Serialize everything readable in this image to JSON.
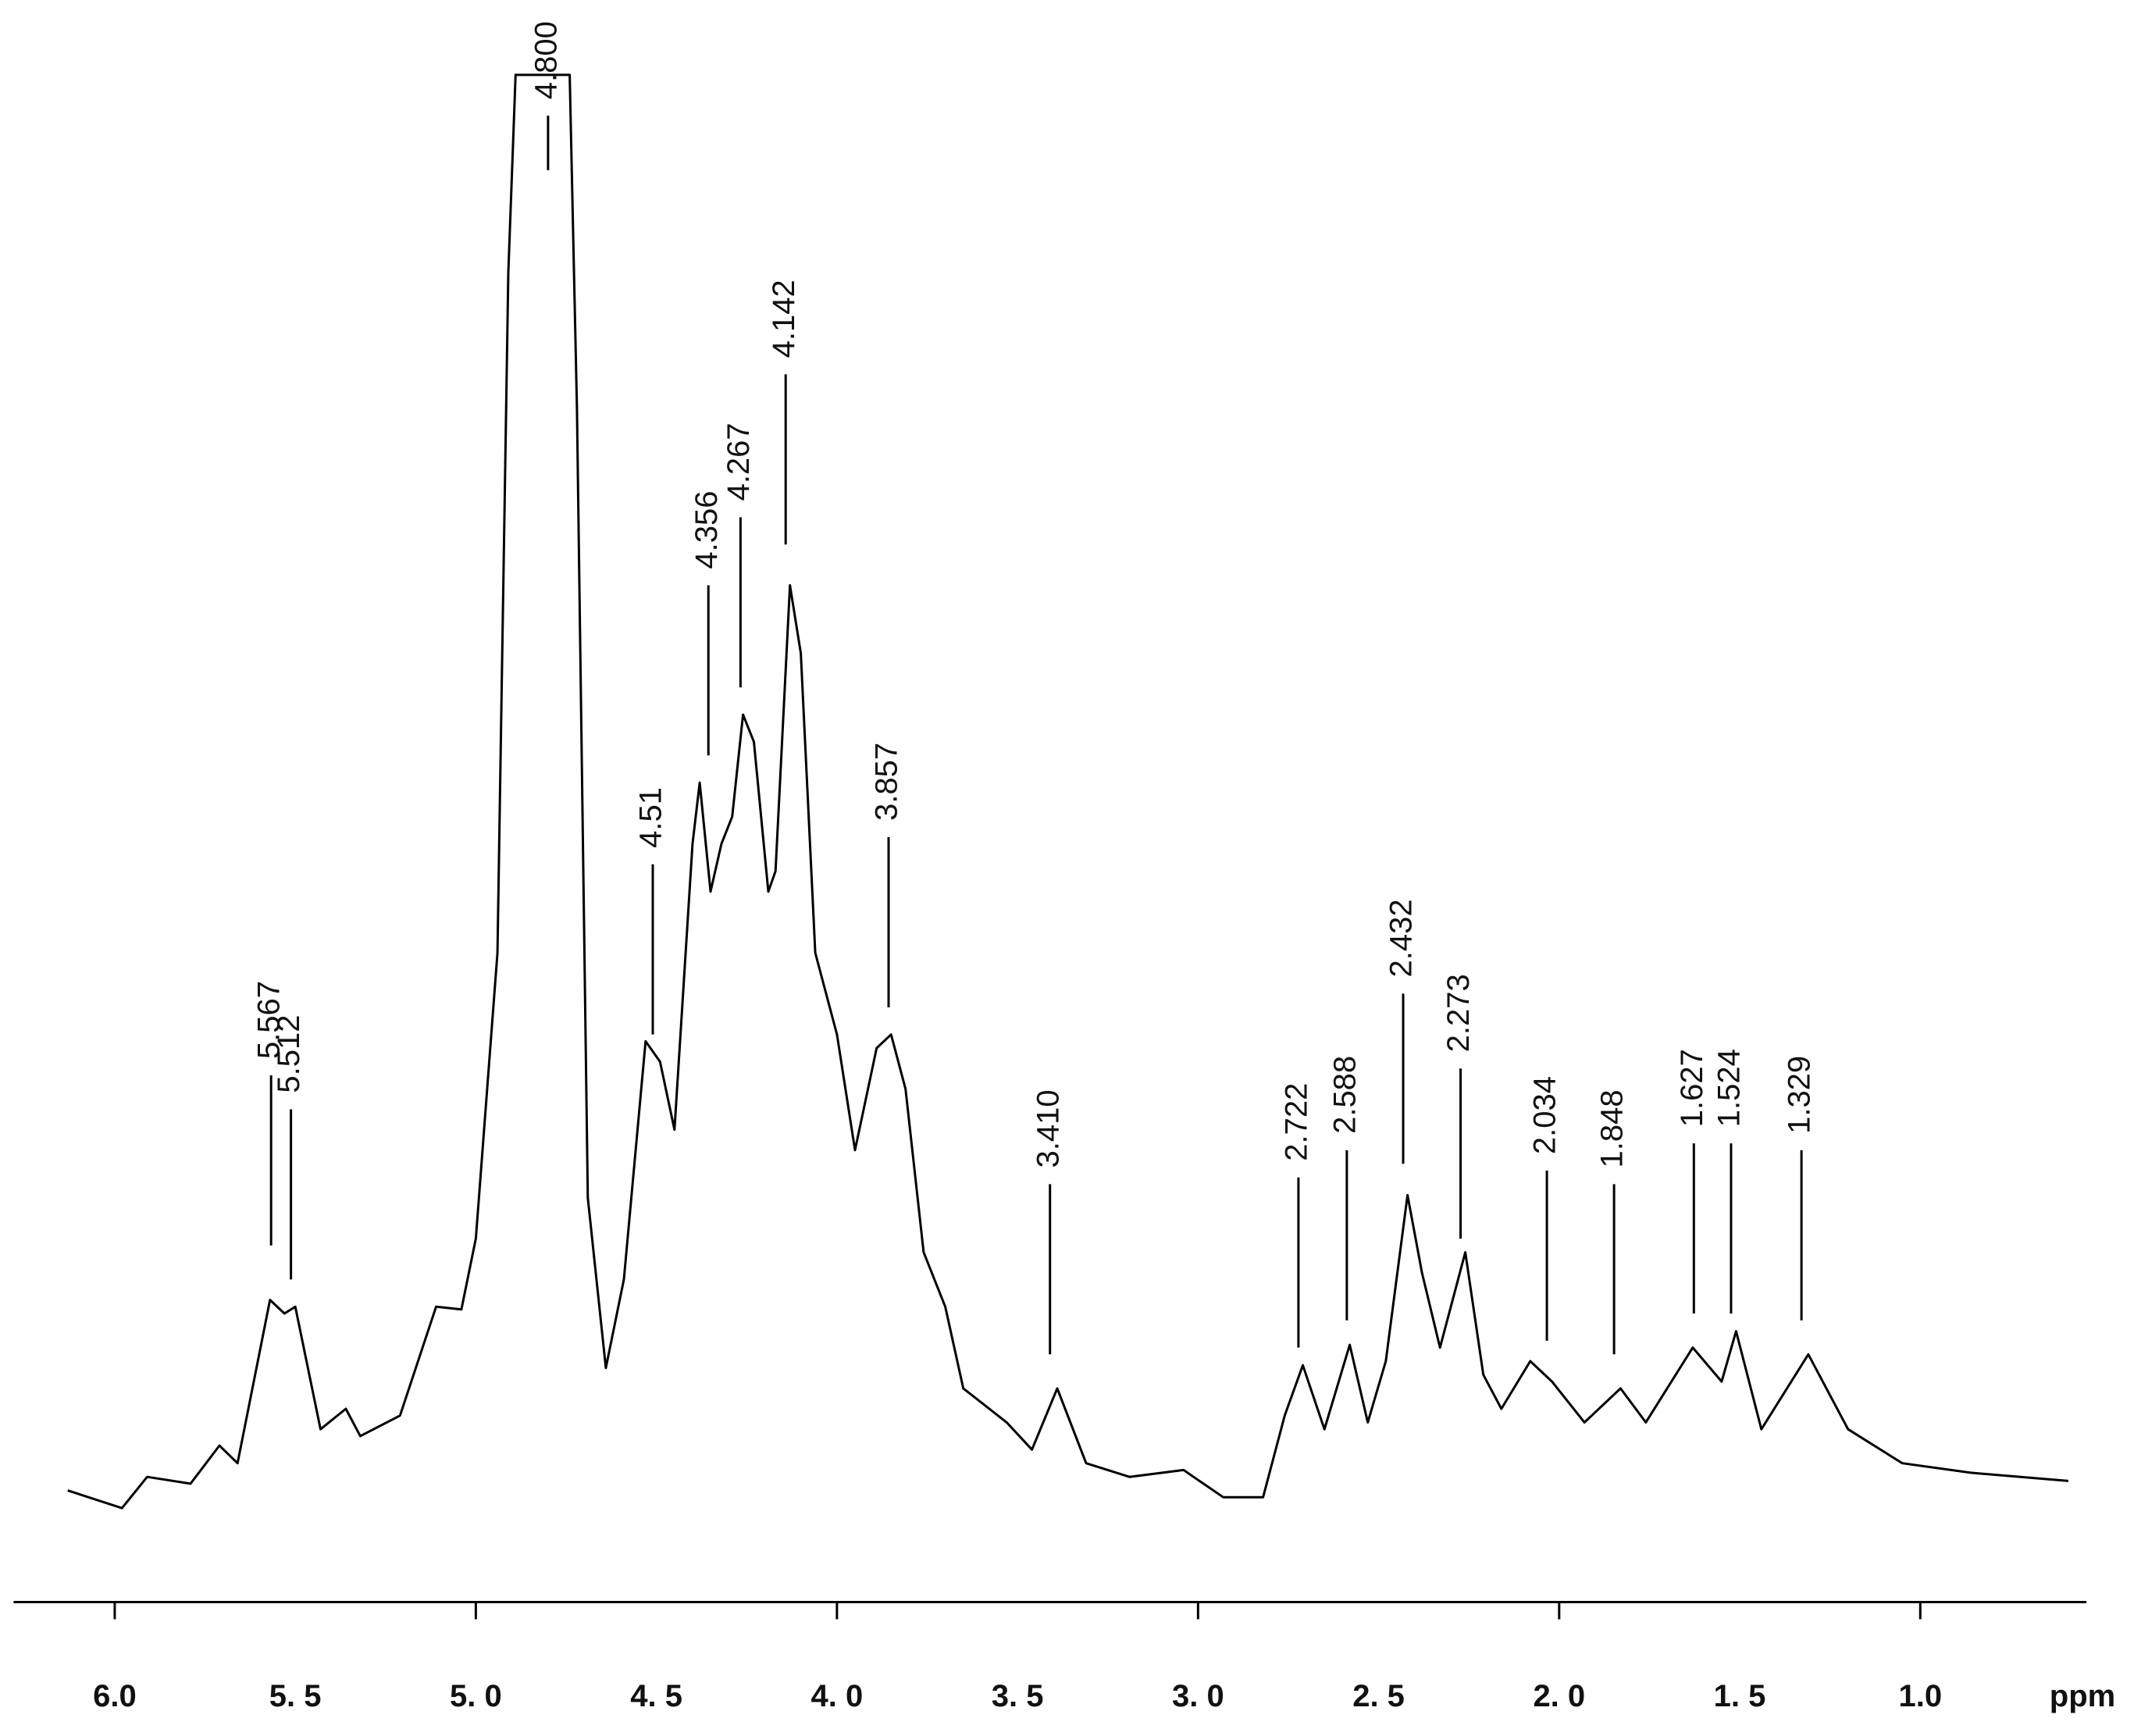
{
  "chart_data": {
    "type": "line",
    "x_label": "ppm",
    "color": "#000000",
    "x": [
      6.13,
      5.98,
      5.91,
      5.79,
      5.71,
      5.66,
      5.57,
      5.53,
      5.5,
      5.43,
      5.36,
      5.32,
      5.21,
      5.11,
      5.04,
      5.0,
      4.94,
      4.91,
      4.89,
      4.74,
      4.72,
      4.69,
      4.64,
      4.59,
      4.53,
      4.49,
      4.45,
      4.4,
      4.38,
      4.35,
      4.32,
      4.29,
      4.26,
      4.23,
      4.19,
      4.17,
      4.13,
      4.1,
      4.06,
      4.0,
      3.95,
      3.89,
      3.85,
      3.81,
      3.76,
      3.7,
      3.65,
      3.53,
      3.46,
      3.39,
      3.31,
      3.19,
      3.04,
      2.93,
      2.82,
      2.76,
      2.71,
      2.65,
      2.58,
      2.53,
      2.48,
      2.42,
      2.38,
      2.33,
      2.26,
      2.21,
      2.16,
      2.08,
      2.02,
      1.93,
      1.83,
      1.76,
      1.63,
      1.55,
      1.51,
      1.44,
      1.31,
      1.2,
      1.05,
      0.86,
      0.59
    ],
    "values": [
      1.7,
      0.4,
      2.7,
      2.2,
      5.0,
      3.7,
      15.7,
      14.7,
      15.2,
      6.2,
      7.7,
      5.7,
      7.2,
      15.2,
      15.0,
      20.2,
      41.2,
      91.2,
      105.7,
      105.7,
      81.2,
      23.2,
      10.7,
      17.2,
      34.7,
      33.2,
      28.2,
      49.2,
      53.7,
      45.7,
      49.2,
      51.2,
      58.7,
      56.7,
      45.7,
      47.2,
      68.2,
      63.2,
      41.2,
      35.2,
      26.7,
      34.2,
      35.2,
      31.2,
      19.2,
      15.2,
      9.2,
      6.7,
      4.7,
      9.2,
      3.7,
      2.7,
      3.2,
      1.2,
      1.2,
      7.2,
      10.9,
      6.2,
      12.4,
      6.7,
      11.2,
      23.4,
      17.7,
      12.2,
      19.2,
      10.2,
      7.7,
      11.2,
      9.7,
      6.7,
      9.2,
      6.7,
      12.2,
      9.7,
      13.4,
      6.2,
      11.7,
      6.2,
      3.7,
      3.0,
      2.4
    ],
    "xlim": [
      6.28,
      0.54
    ],
    "ylim": [
      0,
      108
    ],
    "xticks": [
      {
        "value": 6.0,
        "label": "6.0"
      },
      {
        "value": 5.5,
        "label": "5. 5"
      },
      {
        "value": 5.0,
        "label": "5. 0"
      },
      {
        "value": 4.5,
        "label": "4. 5"
      },
      {
        "value": 4.0,
        "label": "4. 0"
      },
      {
        "value": 3.5,
        "label": "3. 5"
      },
      {
        "value": 3.0,
        "label": "3. 0"
      },
      {
        "value": 2.5,
        "label": "2. 5"
      },
      {
        "value": 2.0,
        "label": "2. 0"
      },
      {
        "value": 1.5,
        "label": "1. 5"
      },
      {
        "value": 1.0,
        "label": "1.0"
      }
    ],
    "peaks": [
      {
        "value": 5.567,
        "label": "5.567"
      },
      {
        "value": 5.512,
        "label": "5.512"
      },
      {
        "value": 4.8,
        "label": "4.800"
      },
      {
        "value": 4.51,
        "label": "4.51"
      },
      {
        "value": 4.356,
        "label": "4.356"
      },
      {
        "value": 4.267,
        "label": "4.267"
      },
      {
        "value": 4.142,
        "label": "4.142"
      },
      {
        "value": 3.857,
        "label": "3.857"
      },
      {
        "value": 3.41,
        "label": "3.410"
      },
      {
        "value": 2.722,
        "label": "2.722"
      },
      {
        "value": 2.588,
        "label": "2.588"
      },
      {
        "value": 2.432,
        "label": "2.432"
      },
      {
        "value": 2.273,
        "label": "2.273"
      },
      {
        "value": 2.034,
        "label": "2.034"
      },
      {
        "value": 1.848,
        "label": "1.848"
      },
      {
        "value": 1.627,
        "label": "1.627"
      },
      {
        "value": 1.524,
        "label": "1.524"
      },
      {
        "value": 1.329,
        "label": "1.329"
      }
    ]
  }
}
